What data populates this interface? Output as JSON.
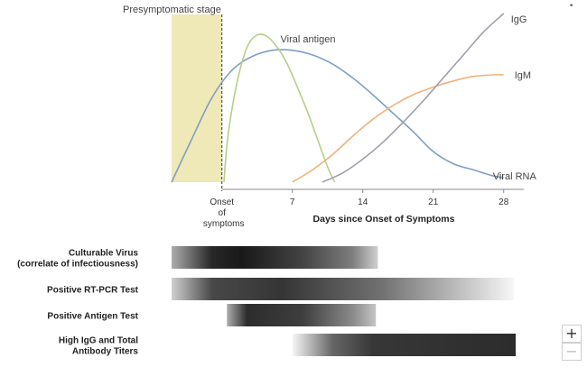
{
  "chart_data": [
    {
      "type": "line",
      "stage_label": "Presymptomatic stage",
      "onset_tick": [
        "Onset",
        "of",
        "symptoms"
      ],
      "xlabel": "Days since Onset of Symptoms",
      "x_ticks": [
        7,
        14,
        21,
        28
      ],
      "xlim": [
        -5,
        30
      ],
      "ylim": [
        0,
        1
      ],
      "series": [
        {
          "name": "Viral RNA",
          "color": "#7f9fc4",
          "x": [
            -5,
            -3,
            -1,
            1,
            3,
            5,
            7,
            9,
            11,
            13,
            15,
            17,
            19,
            21,
            23,
            25,
            27,
            28
          ],
          "y": [
            0.0,
            0.28,
            0.55,
            0.73,
            0.82,
            0.86,
            0.86,
            0.83,
            0.77,
            0.68,
            0.57,
            0.45,
            0.33,
            0.2,
            0.12,
            0.08,
            0.04,
            0.03
          ]
        },
        {
          "name": "Viral antigen",
          "color": "#b5cf87",
          "x": [
            0.2,
            0.6,
            1.5,
            2.5,
            3.5,
            4.5,
            5.5,
            6.5,
            7.5,
            8.5,
            9.5,
            10.5,
            11.2
          ],
          "y": [
            0.0,
            0.3,
            0.65,
            0.88,
            0.96,
            0.95,
            0.88,
            0.77,
            0.62,
            0.46,
            0.28,
            0.1,
            0.0
          ]
        },
        {
          "name": "IgM",
          "color": "#efb27a",
          "x": [
            7,
            9,
            11,
            13,
            15,
            17,
            19,
            21,
            23,
            25,
            27,
            28
          ],
          "y": [
            0.0,
            0.08,
            0.18,
            0.3,
            0.41,
            0.5,
            0.57,
            0.62,
            0.66,
            0.69,
            0.7,
            0.7
          ]
        },
        {
          "name": "IgG",
          "color": "#9ea0ac",
          "x": [
            10,
            12,
            14,
            16,
            18,
            20,
            22,
            24,
            26,
            28
          ],
          "y": [
            0.0,
            0.06,
            0.15,
            0.26,
            0.39,
            0.53,
            0.68,
            0.83,
            0.98,
            1.1
          ]
        }
      ]
    },
    {
      "type": "table",
      "xlim": [
        -5,
        30
      ],
      "rows": [
        {
          "label": [
            "Culturable Virus",
            "(correlate of infectiousness)"
          ],
          "x_start": -5,
          "x_end": 15.5,
          "gradient": [
            {
              "x": -5,
              "shade": 0.35
            },
            {
              "x": -1,
              "shade": 0.92
            },
            {
              "x": 2,
              "shade": 0.98
            },
            {
              "x": 8,
              "shade": 0.8
            },
            {
              "x": 13,
              "shade": 0.55
            },
            {
              "x": 15.5,
              "shade": 0.2
            }
          ]
        },
        {
          "label": [
            "Positive RT-PCR Test"
          ],
          "x_start": -5,
          "x_end": 29,
          "gradient": [
            {
              "x": -5,
              "shade": 0.2
            },
            {
              "x": -1,
              "shade": 0.78
            },
            {
              "x": 6,
              "shade": 0.86
            },
            {
              "x": 16,
              "shade": 0.6
            },
            {
              "x": 23,
              "shade": 0.3
            },
            {
              "x": 29,
              "shade": 0.04
            }
          ]
        },
        {
          "label": [
            "Positive Antigen Test"
          ],
          "x_start": 0.5,
          "x_end": 15.3,
          "gradient": [
            {
              "x": 0.5,
              "shade": 0.35
            },
            {
              "x": 2.5,
              "shade": 0.9
            },
            {
              "x": 8,
              "shade": 0.82
            },
            {
              "x": 13,
              "shade": 0.5
            },
            {
              "x": 15.3,
              "shade": 0.25
            }
          ]
        },
        {
          "label": [
            "High IgG and Total",
            "Antibody Titers"
          ],
          "x_start": 7,
          "x_end": 29.2,
          "gradient": [
            {
              "x": 7,
              "shade": 0.04
            },
            {
              "x": 11,
              "shade": 0.65
            },
            {
              "x": 15,
              "shade": 0.85
            },
            {
              "x": 29.2,
              "shade": 0.9
            }
          ]
        }
      ]
    }
  ],
  "controls": {
    "zoom_in": "+",
    "zoom_out": "−",
    "corner_mark": "•"
  }
}
